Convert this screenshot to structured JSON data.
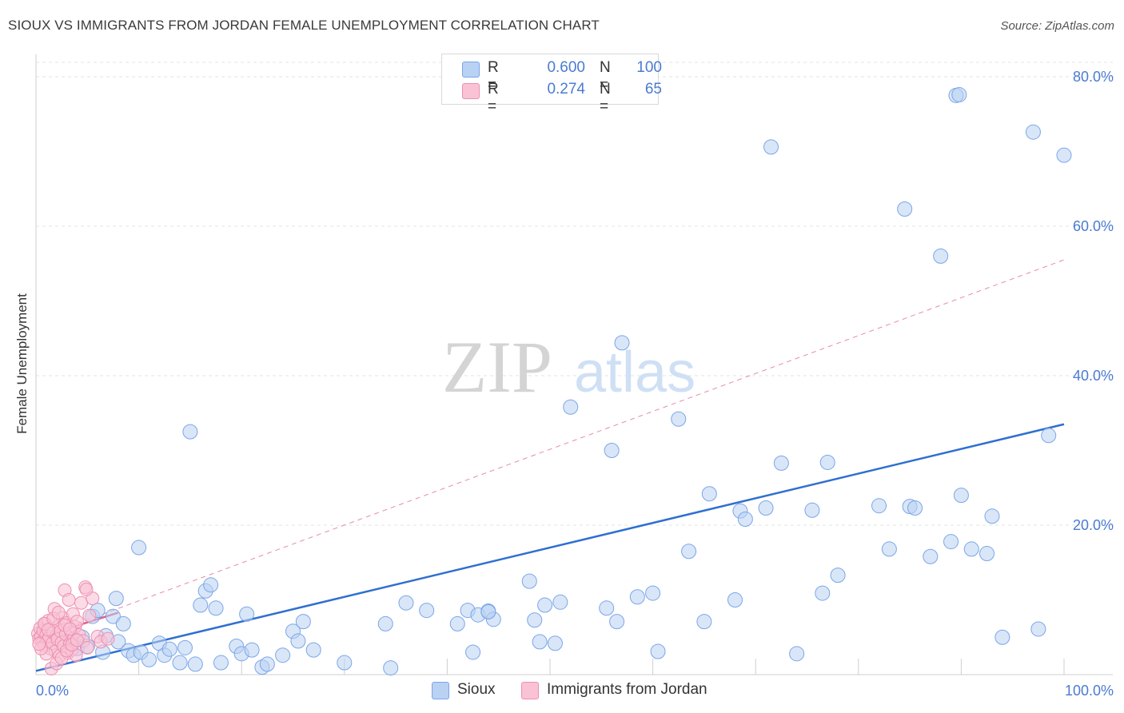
{
  "header": {
    "title": "SIOUX VS IMMIGRANTS FROM JORDAN FEMALE UNEMPLOYMENT CORRELATION CHART",
    "source": "Source: ZipAtlas.com"
  },
  "watermark": {
    "zip": "ZIP",
    "atlas": "atlas"
  },
  "legend": {
    "rows": [
      {
        "r_label": "R =",
        "r_value": "0.600",
        "n_label": "N =",
        "n_value": "100",
        "color": "#a9c6f0"
      },
      {
        "r_label": "R =",
        "r_value": "0.274",
        "n_label": "N =",
        "n_value": "65",
        "color": "#f7b6cb"
      }
    ]
  },
  "bottom_legend": {
    "items": [
      {
        "label": "Sioux",
        "color": "#a9c6f0"
      },
      {
        "label": "Immigrants from Jordan",
        "color": "#f7b6cb"
      }
    ]
  },
  "chart_data": {
    "type": "scatter",
    "title": "SIOUX VS IMMIGRANTS FROM JORDAN FEMALE UNEMPLOYMENT CORRELATION CHART",
    "xlabel": "",
    "ylabel": "Female Unemployment",
    "xlim": [
      0,
      100
    ],
    "ylim": [
      0,
      80
    ],
    "x_tick_labels": [
      "0.0%",
      "100.0%"
    ],
    "y_ticks": [
      20,
      40,
      60,
      80
    ],
    "y_tick_labels": [
      "20.0%",
      "40.0%",
      "60.0%",
      "80.0%"
    ],
    "grid": true,
    "series": [
      {
        "name": "Sioux",
        "color": "#7aa6e8",
        "fill": "#b9d1f3",
        "trend": {
          "x": [
            0,
            100
          ],
          "y": [
            0.5,
            33.5
          ],
          "style": "solid",
          "color": "#2f6fd0"
        },
        "points": [
          [
            3,
            4.5
          ],
          [
            4,
            3.5
          ],
          [
            4.5,
            5
          ],
          [
            5,
            3.8
          ],
          [
            5.5,
            7.8
          ],
          [
            6,
            8.6
          ],
          [
            6.5,
            3
          ],
          [
            6.8,
            5.2
          ],
          [
            7.5,
            7.8
          ],
          [
            7.8,
            10.2
          ],
          [
            8,
            4.4
          ],
          [
            8.5,
            6.8
          ],
          [
            9,
            3.2
          ],
          [
            9.5,
            2.6
          ],
          [
            10,
            17
          ],
          [
            10.2,
            3
          ],
          [
            11,
            2
          ],
          [
            12,
            4.2
          ],
          [
            12.5,
            2.6
          ],
          [
            13,
            3.4
          ],
          [
            14,
            1.6
          ],
          [
            14.5,
            3.6
          ],
          [
            15,
            32.5
          ],
          [
            15.5,
            1.4
          ],
          [
            16,
            9.3
          ],
          [
            16.5,
            11.2
          ],
          [
            17,
            12
          ],
          [
            17.5,
            8.9
          ],
          [
            19.5,
            3.8
          ],
          [
            20,
            2.8
          ],
          [
            20.5,
            8.1
          ],
          [
            21,
            3.3
          ],
          [
            22,
            1
          ],
          [
            22.5,
            1.4
          ],
          [
            24,
            2.6
          ],
          [
            25,
            5.8
          ],
          [
            25.5,
            4.5
          ],
          [
            26,
            7.1
          ],
          [
            30,
            1.6
          ],
          [
            34.5,
            0.9
          ],
          [
            36,
            9.6
          ],
          [
            41,
            6.8
          ],
          [
            42,
            8.6
          ],
          [
            42.5,
            3
          ],
          [
            43,
            8
          ],
          [
            44,
            8.5
          ],
          [
            44.5,
            7.4
          ],
          [
            48,
            12.5
          ],
          [
            48.5,
            7.3
          ],
          [
            49,
            4.4
          ],
          [
            49.5,
            9.3
          ],
          [
            50.5,
            4.2
          ],
          [
            51,
            9.7
          ],
          [
            52,
            35.8
          ],
          [
            55.5,
            8.9
          ],
          [
            56,
            30
          ],
          [
            56.5,
            7.1
          ],
          [
            57,
            44.4
          ],
          [
            60,
            10.9
          ],
          [
            60.5,
            3.1
          ],
          [
            62.5,
            34.2
          ],
          [
            63.5,
            16.5
          ],
          [
            65,
            7.1
          ],
          [
            65.5,
            24.2
          ],
          [
            68,
            10
          ],
          [
            68.5,
            21.9
          ],
          [
            69,
            20.8
          ],
          [
            71,
            22.3
          ],
          [
            71.5,
            70.6
          ],
          [
            72.5,
            28.3
          ],
          [
            74,
            2.8
          ],
          [
            75.5,
            22
          ],
          [
            76.5,
            10.9
          ],
          [
            77,
            28.4
          ],
          [
            78,
            13.3
          ],
          [
            82,
            22.6
          ],
          [
            83,
            16.8
          ],
          [
            84.5,
            62.3
          ],
          [
            85,
            22.5
          ],
          [
            85.5,
            22.3
          ],
          [
            87,
            15.8
          ],
          [
            88,
            56
          ],
          [
            89,
            17.8
          ],
          [
            89.5,
            77.5
          ],
          [
            89.8,
            77.6
          ],
          [
            90,
            24
          ],
          [
            91,
            16.8
          ],
          [
            92.5,
            16.2
          ],
          [
            93,
            21.2
          ],
          [
            94,
            5
          ],
          [
            97,
            72.6
          ],
          [
            97.5,
            6.1
          ],
          [
            98.5,
            32
          ],
          [
            100,
            69.5
          ],
          [
            44,
            8.4
          ],
          [
            38,
            8.6
          ],
          [
            34,
            6.8
          ],
          [
            27,
            3.3
          ],
          [
            18,
            1.6
          ],
          [
            58.5,
            10.4
          ]
        ]
      },
      {
        "name": "Immigrants from Jordan",
        "color": "#ee8fb0",
        "fill": "#f9c3d5",
        "trend": {
          "x": [
            0,
            8
          ],
          "y": [
            4.8,
            8.3
          ],
          "style": "solid",
          "color": "#e25c8a"
        },
        "trend_extended": {
          "x": [
            0,
            100
          ],
          "y": [
            4.8,
            55.5
          ],
          "style": "dashed",
          "color": "#e88aa9"
        },
        "points": [
          [
            0.2,
            5.5
          ],
          [
            0.3,
            4.8
          ],
          [
            0.4,
            6.2
          ],
          [
            0.5,
            5.1
          ],
          [
            0.6,
            4.4
          ],
          [
            0.7,
            5.9
          ],
          [
            0.8,
            3.9
          ],
          [
            0.9,
            6.8
          ],
          [
            1,
            5.3
          ],
          [
            1.1,
            4.6
          ],
          [
            1.2,
            7.2
          ],
          [
            1.3,
            5
          ],
          [
            1.4,
            3.5
          ],
          [
            1.5,
            6.1
          ],
          [
            1.6,
            4.2
          ],
          [
            1.7,
            5.6
          ],
          [
            1.8,
            8.8
          ],
          [
            1.9,
            3.1
          ],
          [
            2,
            5.2
          ],
          [
            2.1,
            4.7
          ],
          [
            2.2,
            6.5
          ],
          [
            2.3,
            2.5
          ],
          [
            2.4,
            5.8
          ],
          [
            2.5,
            4.3
          ],
          [
            2.6,
            7.6
          ],
          [
            2.7,
            3.8
          ],
          [
            2.8,
            11.3
          ],
          [
            2.9,
            5.4
          ],
          [
            3,
            6.9
          ],
          [
            3.1,
            2.9
          ],
          [
            3.2,
            10
          ],
          [
            3.3,
            4.1
          ],
          [
            3.4,
            5.7
          ],
          [
            3.5,
            3.3
          ],
          [
            3.6,
            8.1
          ],
          [
            3.7,
            4.9
          ],
          [
            3.8,
            6.4
          ],
          [
            3.9,
            2.6
          ],
          [
            4,
            7.1
          ],
          [
            4.2,
            5.3
          ],
          [
            4.4,
            9.6
          ],
          [
            4.6,
            4.5
          ],
          [
            4.8,
            11.7
          ],
          [
            5,
            3.6
          ],
          [
            5.2,
            7.9
          ],
          [
            5.5,
            10.2
          ],
          [
            6,
            5.1
          ],
          [
            6.3,
            4.4
          ],
          [
            7,
            4.8
          ],
          [
            1.5,
            0.8
          ],
          [
            2,
            1.5
          ],
          [
            2.5,
            2.2
          ],
          [
            1,
            2.8
          ],
          [
            0.5,
            3.5
          ],
          [
            3,
            3.2
          ],
          [
            3.5,
            4
          ],
          [
            4,
            4.6
          ],
          [
            0.8,
            6.8
          ],
          [
            1.2,
            6
          ],
          [
            1.7,
            7.5
          ],
          [
            2.2,
            8.3
          ],
          [
            2.8,
            6.6
          ],
          [
            3.3,
            6.1
          ],
          [
            0.3,
            4.1
          ],
          [
            4.9,
            11.4
          ]
        ]
      }
    ]
  }
}
